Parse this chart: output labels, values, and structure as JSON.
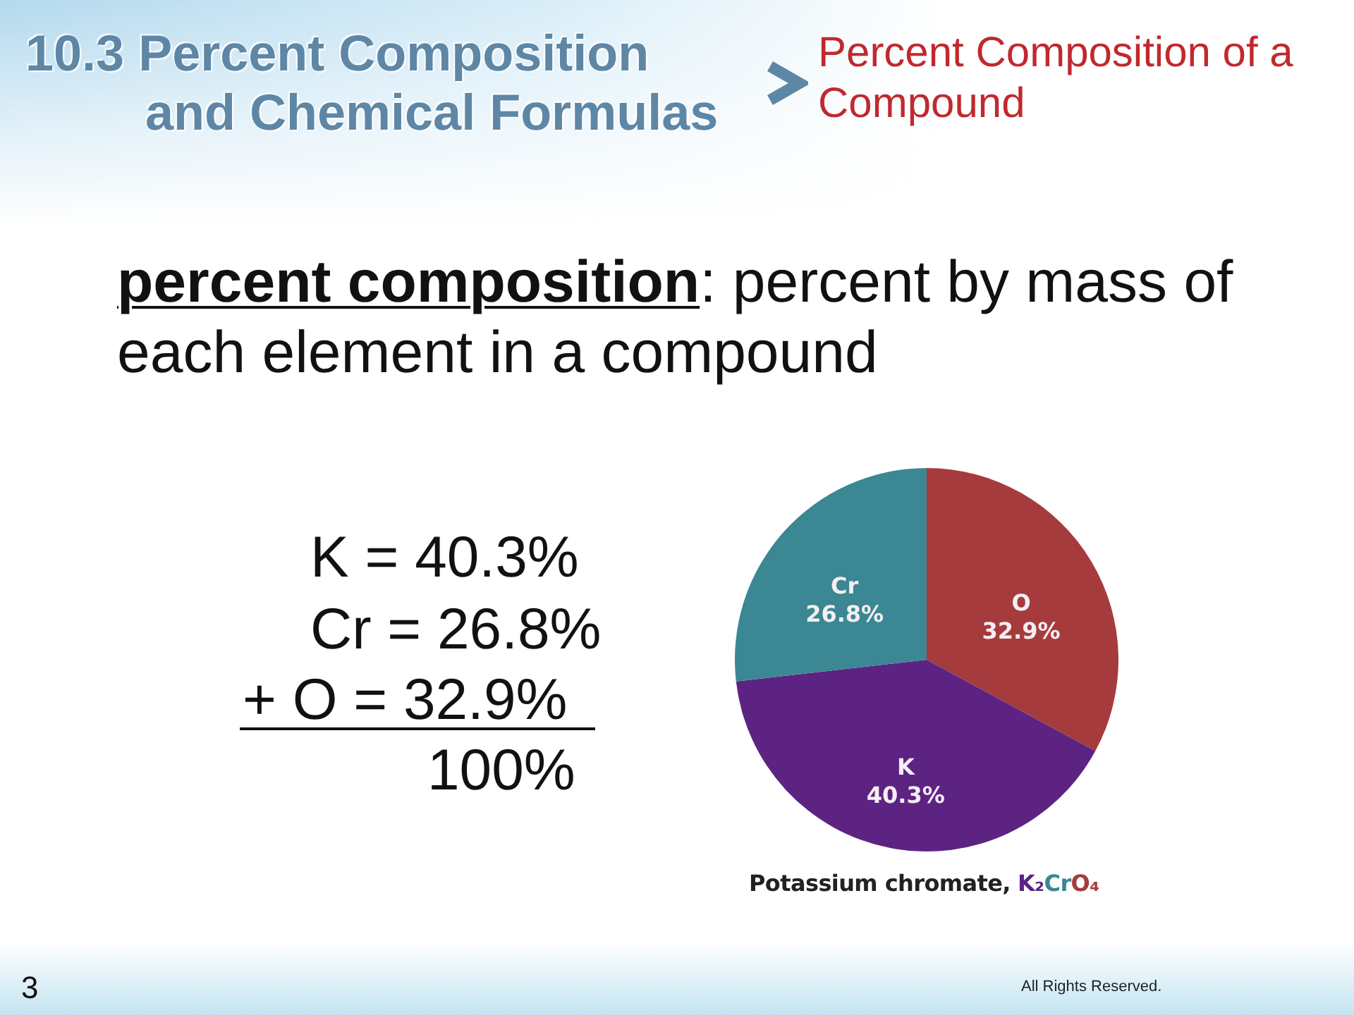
{
  "chart_data": {
    "type": "pie",
    "title": "10.3 Percent Composition and Chemical Formulas",
    "subtitle": "Percent Composition of a Compound",
    "categories": [
      "O",
      "K",
      "Cr"
    ],
    "values": [
      32.9,
      40.3,
      26.8
    ],
    "colors": [
      "#a63b3d",
      "#5d2383",
      "#3b8793"
    ],
    "value_labels": [
      "32.9%",
      "40.3%",
      "26.8%"
    ],
    "annotations": [
      "percent composition",
      ": percent by mass of",
      "each element in a compound",
      "K = 40.3%",
      "Cr = 26.8%",
      "+ O = 32.9%",
      "100%",
      "Potassium chromate,",
      "K₂CrO₄",
      "3",
      "All Rights Reserved."
    ]
  }
}
